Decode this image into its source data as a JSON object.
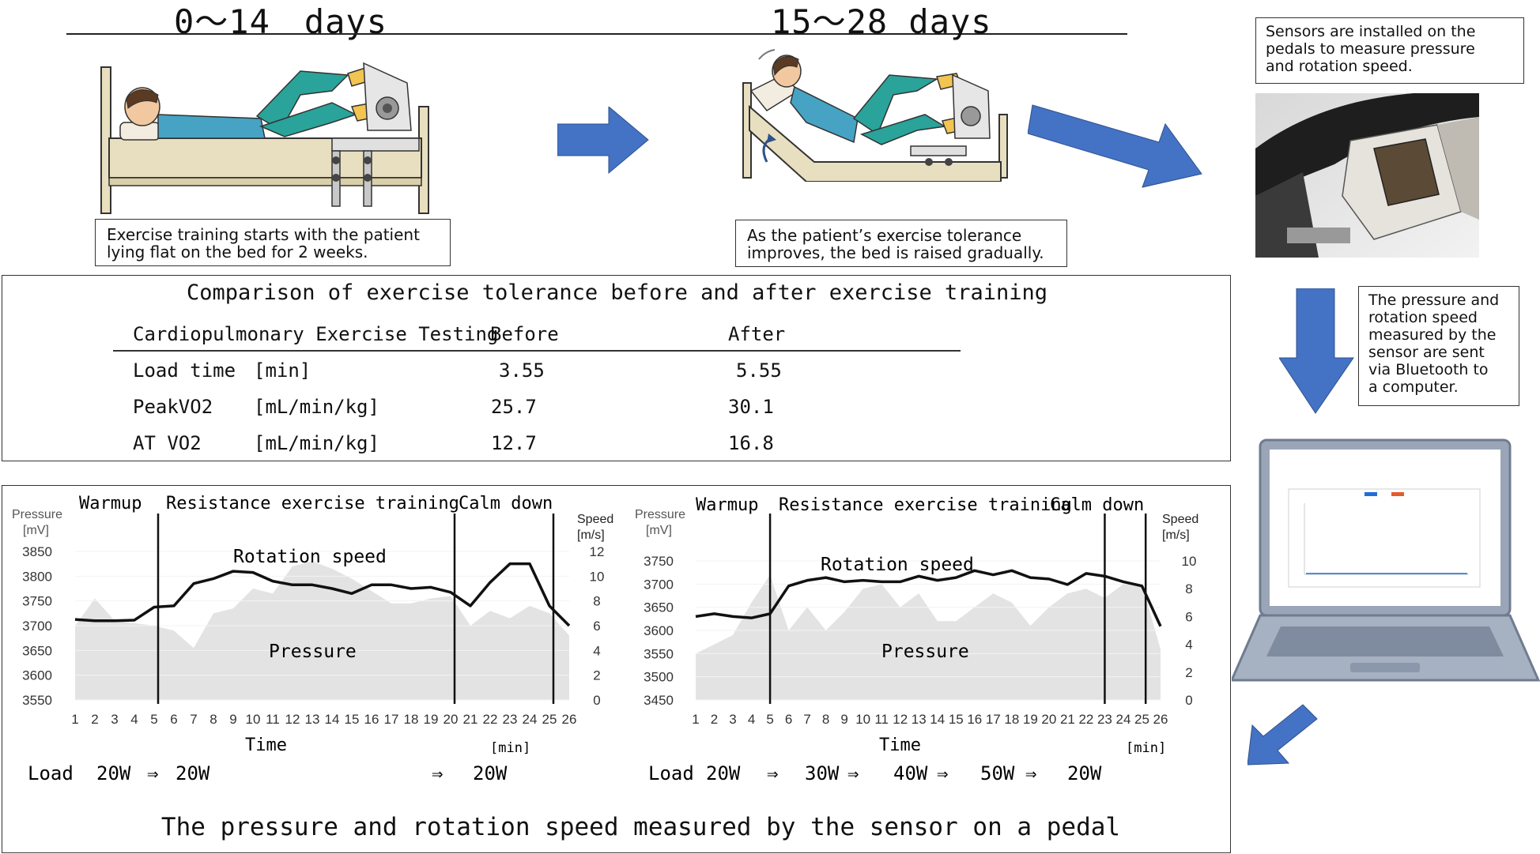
{
  "top": {
    "period1": "0～14　days",
    "period2": "15～28 days",
    "caption1_line1": "Exercise training starts with the patient",
    "caption1_line2": "lying flat on the bed for 2 weeks.",
    "caption2_line1": "As the patient’s exercise tolerance",
    "caption2_line2": "improves, the bed is raised gradually.",
    "sensor_note": [
      "Sensors are installed on the",
      "pedals to measure pressure",
      "and rotation speed."
    ],
    "bluetooth_note": [
      "The pressure and",
      "rotation speed",
      "measured by the",
      "sensor are sent",
      "via Bluetooth to",
      "a computer."
    ]
  },
  "table": {
    "title": "Comparison of exercise tolerance before and after exercise training",
    "headers": [
      "Cardiopulmonary Exercise Testing",
      "Before",
      "After"
    ],
    "rows": [
      {
        "name": "Load time",
        "unit": "[min]",
        "before": "3.55",
        "after": "5.55"
      },
      {
        "name": "PeakVO2",
        "unit": "[mL/min/kg]",
        "before": "25.7",
        "after": "30.1"
      },
      {
        "name": "AT VO2",
        "unit": "[mL/min/kg]",
        "before": "12.7",
        "after": "16.8"
      }
    ]
  },
  "bottom_title": "The pressure and rotation speed measured by the sensor on a pedal",
  "chart_data": [
    {
      "type": "area",
      "ylabel_left": [
        "Pressure",
        "[mV]"
      ],
      "ylabel_right": [
        "Speed",
        "[m/s]"
      ],
      "xlabel": "Time",
      "xunit": "[min]",
      "phases": [
        "Warmup",
        "Resistance exercise training",
        "Calm down"
      ],
      "phase_boundaries": [
        5.2,
        20.2,
        25.2
      ],
      "series_labels": {
        "speed": "Rotation speed",
        "pressure": "Pressure"
      },
      "x": [
        1,
        2,
        3,
        4,
        5,
        6,
        7,
        8,
        9,
        10,
        11,
        12,
        13,
        14,
        15,
        16,
        17,
        18,
        19,
        20,
        21,
        22,
        23,
        24,
        25,
        26
      ],
      "ylim_left": [
        3550,
        3850
      ],
      "yticks_left": [
        3550,
        3600,
        3650,
        3700,
        3750,
        3800,
        3850
      ],
      "ylim_right": [
        0,
        12
      ],
      "yticks_right": [
        0,
        2,
        4,
        6,
        8,
        10,
        12
      ],
      "pressure": [
        3700,
        3755,
        3710,
        3705,
        3700,
        3690,
        3655,
        3725,
        3735,
        3775,
        3765,
        3820,
        3830,
        3815,
        3795,
        3770,
        3745,
        3745,
        3755,
        3760,
        3700,
        3730,
        3715,
        3740,
        3725,
        3680
      ],
      "speed": [
        6.5,
        6.4,
        6.4,
        6.45,
        7.5,
        7.6,
        9.4,
        9.8,
        10.4,
        10.3,
        9.6,
        9.3,
        9.3,
        9.0,
        8.6,
        9.3,
        9.3,
        9.0,
        9.1,
        8.7,
        7.6,
        9.5,
        11.0,
        11.0,
        7.6,
        6.0
      ],
      "load_label": "Load",
      "loads": [
        "20W",
        "⇒",
        "20W",
        "⇒",
        "20W"
      ]
    },
    {
      "type": "area",
      "ylabel_left": [
        "Pressure",
        "[mV]"
      ],
      "ylabel_right": [
        "Speed",
        "[m/s]"
      ],
      "xlabel": "Time",
      "xunit": "[min]",
      "phases": [
        "Warmup",
        "Resistance exercise training",
        "Calm down"
      ],
      "phase_boundaries": [
        5.0,
        23.0,
        25.2
      ],
      "series_labels": {
        "speed": "Rotation speed",
        "pressure": "Pressure"
      },
      "x": [
        1,
        2,
        3,
        4,
        5,
        6,
        7,
        8,
        9,
        10,
        11,
        12,
        13,
        14,
        15,
        16,
        17,
        18,
        19,
        20,
        21,
        22,
        23,
        24,
        25,
        26
      ],
      "ylim_left": [
        3450,
        3750
      ],
      "yticks_left": [
        3450,
        3500,
        3550,
        3600,
        3650,
        3700,
        3750
      ],
      "ylim_right": [
        0,
        10
      ],
      "yticks_right": [
        0,
        2,
        4,
        6,
        8,
        10
      ],
      "pressure": [
        3550,
        3570,
        3590,
        3660,
        3720,
        3600,
        3650,
        3600,
        3640,
        3690,
        3700,
        3650,
        3680,
        3620,
        3620,
        3650,
        3680,
        3660,
        3610,
        3650,
        3680,
        3690,
        3670,
        3700,
        3700,
        3560
      ],
      "speed": [
        6.0,
        6.2,
        6.0,
        5.9,
        6.2,
        8.2,
        8.6,
        8.8,
        8.5,
        8.6,
        8.5,
        8.5,
        8.9,
        8.6,
        8.8,
        9.3,
        9.0,
        9.3,
        8.8,
        8.7,
        8.3,
        9.1,
        8.9,
        8.5,
        8.2,
        5.3
      ],
      "load_label": "Load",
      "loads": [
        "20W",
        "⇒",
        "30W",
        "⇒",
        "40W",
        "⇒",
        "50W",
        "⇒",
        "20W"
      ]
    }
  ],
  "colors": {
    "arrow": "#4472c4",
    "area": "#e3e3e3",
    "scrub": "#2aa39a",
    "skin": "#f2c8a0",
    "shirt": "#46a3c4",
    "bed": "#e8dfc0",
    "frame": "#8a7a5a"
  }
}
